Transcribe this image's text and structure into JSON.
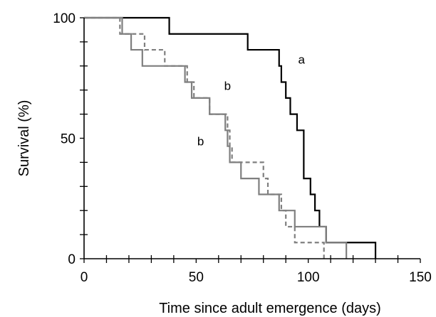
{
  "chart_data": {
    "type": "line",
    "step": true,
    "title": "",
    "xlabel": "Time since adult emergence (days)",
    "ylabel": "Survival (%)",
    "xlim": [
      0,
      150
    ],
    "ylim": [
      0,
      100
    ],
    "x_ticks": [
      0,
      50,
      100,
      150
    ],
    "y_ticks": [
      0,
      50,
      100
    ],
    "x_minor_step": 10,
    "y_minor_step": 10,
    "grid": false,
    "legend": "none",
    "series": [
      {
        "style": "solid",
        "color": "#000000",
        "x": [
          0,
          38,
          73,
          87,
          88,
          90,
          92,
          95,
          98,
          101,
          103,
          105,
          108,
          112,
          130
        ],
        "y": [
          100,
          93.3,
          86.7,
          80,
          73.3,
          66.7,
          60,
          53.3,
          33.3,
          26.7,
          20,
          13.3,
          6.7,
          6.7,
          0
        ]
      },
      {
        "style": "solid",
        "color": "#7f7f7f",
        "x": [
          0,
          17,
          21,
          26,
          45,
          48,
          56,
          63,
          64,
          65,
          70,
          78,
          87,
          94,
          108,
          117
        ],
        "y": [
          100,
          93.3,
          86.7,
          80,
          73.3,
          66.7,
          60,
          53.3,
          46.7,
          40,
          33.3,
          26.7,
          20,
          13.3,
          6.7,
          0
        ]
      },
      {
        "style": "dashed",
        "color": "#7f7f7f",
        "x": [
          0,
          16,
          27,
          36,
          46,
          49,
          56,
          64,
          65,
          66,
          80,
          82,
          88,
          90,
          94,
          107
        ],
        "y": [
          100,
          93.3,
          86.7,
          80,
          73.3,
          66.7,
          60,
          53.3,
          46.7,
          40,
          33.3,
          26.7,
          20,
          13.3,
          6.7,
          0
        ]
      }
    ],
    "annotations": [
      {
        "text": "a",
        "x": 97,
        "y": 81
      },
      {
        "text": "b",
        "x": 64,
        "y": 70
      },
      {
        "text": "b",
        "x": 52,
        "y": 47
      }
    ]
  }
}
